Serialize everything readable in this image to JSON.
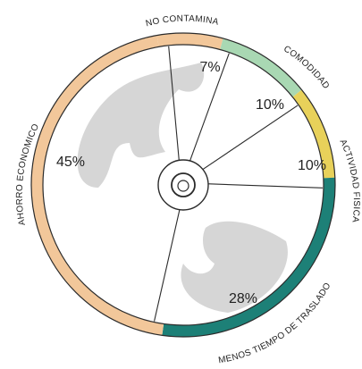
{
  "chart_data": {
    "type": "pie",
    "title": "",
    "slices": [
      {
        "label": "NO CONTAMINA",
        "value": 7,
        "text": "7%",
        "color": "#f2c79a"
      },
      {
        "label": "COMODIDAD",
        "value": 10,
        "text": "10%",
        "color": "#a9d8b3"
      },
      {
        "label": "ACTIVIDAD FISICA",
        "value": 10,
        "text": "10%",
        "color": "#e8d15a"
      },
      {
        "label": "MENOS TIEMPO DE TRASLADO",
        "value": 28,
        "text": "28%",
        "color": "#1d8077"
      },
      {
        "label": "AHORRO ECONOMICO",
        "value": 45,
        "text": "45%",
        "color": "#f2c79a"
      }
    ]
  },
  "colors": {
    "outline": "#2b2b2b",
    "shadow": "#d6d6d6",
    "background": "#ffffff"
  }
}
